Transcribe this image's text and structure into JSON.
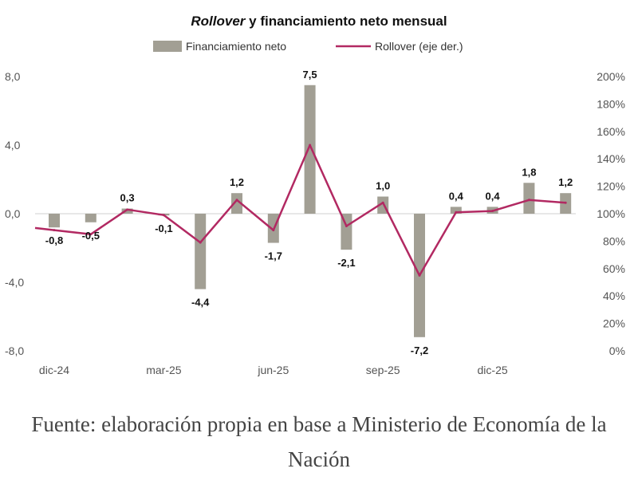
{
  "chart_data": {
    "type": "bar",
    "title_italic": "Rollover",
    "title_rest": " y financiamiento neto mensual",
    "legend_bar": "Financiamiento neto",
    "legend_line": "Rollover (eje der.)",
    "x_tick_labels": [
      "dic-24",
      "mar-25",
      "jun-25",
      "sep-25",
      "dic-25"
    ],
    "x_tick_index": [
      0,
      3,
      6,
      9,
      12
    ],
    "bar_labels": [
      "-0,8",
      "-0,5",
      "0,3",
      "-0,1",
      "-4,4",
      "1,2",
      "-1,7",
      "7,5",
      "-2,1",
      "1,0",
      "-7,2",
      "0,4",
      "0,4",
      "1,8",
      "1,2"
    ],
    "bars": [
      -0.8,
      -0.5,
      0.3,
      -0.1,
      -4.4,
      1.2,
      -1.7,
      7.5,
      -2.1,
      1.0,
      -7.2,
      0.4,
      0.4,
      1.8,
      1.2
    ],
    "rollover": [
      88,
      85,
      103,
      99,
      79,
      110,
      88,
      150,
      91,
      108,
      55,
      101,
      102,
      110,
      108
    ],
    "y_left_ticks": [
      "8,0",
      "4,0",
      "0,0",
      "-4,0",
      "-8,0"
    ],
    "ylim_left": [
      -8,
      8
    ],
    "y_right_ticks": [
      "200%",
      "180%",
      "160%",
      "140%",
      "120%",
      "100%",
      "80%",
      "60%",
      "40%",
      "20%",
      "0%"
    ],
    "ylim_right": [
      0,
      200
    ],
    "colors": {
      "bar": "#a29f94",
      "line": "#b22962"
    }
  },
  "source_text": "Fuente: elaboración propia en base a Ministerio de Economía de la Nación"
}
